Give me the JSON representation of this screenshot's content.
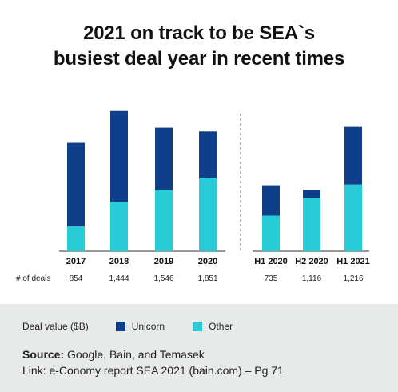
{
  "header": {
    "title_line1": "2021 on track to be SEA`s",
    "title_line2": "busiest deal year in recent times"
  },
  "chart_data": {
    "type": "bar",
    "stacked": true,
    "title": "2021 on track to be SEA`s busiest deal year in recent times",
    "categories": [
      "2017",
      "2018",
      "2019",
      "2020",
      "H1 2020",
      "H2 2020",
      "H1 2021"
    ],
    "series": [
      {
        "name": "Other",
        "color": "#27ccd6",
        "values": [
          3.3,
          6.5,
          8.1,
          9.7,
          4.7,
          7.0,
          8.8
        ]
      },
      {
        "name": "Unicorn",
        "color": "#0f3e8a",
        "values": [
          11.0,
          12.0,
          8.2,
          6.1,
          4.0,
          1.1,
          7.6
        ]
      }
    ],
    "row_label": "# of deals",
    "deals": [
      "854",
      "1,444",
      "1,546",
      "1,851",
      "735",
      "1,116",
      "1,216"
    ],
    "ylim": [
      0,
      19
    ],
    "divider_after_category": 3,
    "grid": false
  },
  "legend": {
    "label": "Deal value ($B)",
    "unicorn": "Unicorn",
    "other": "Other",
    "unicorn_color": "#0f3e8a",
    "other_color": "#27ccd6"
  },
  "footer": {
    "source_label": "Source:",
    "source_text": "Google, Bain, and Temasek",
    "link_text": "Link: e-Conomy report SEA 2021 (bain.com) – Pg 71"
  }
}
